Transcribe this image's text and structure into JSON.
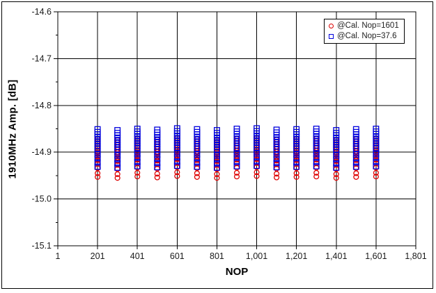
{
  "chart_data": {
    "type": "scatter",
    "xlabel": "NOP",
    "ylabel": "1910MHz Amp. [dB]",
    "xlim": [
      1,
      1801
    ],
    "ylim": [
      -15.1,
      -14.6
    ],
    "grid": "on",
    "grid_color": "#000000",
    "background": "#FFFFFF",
    "legend_position": "top-right-inside",
    "x_tick_values": [
      1,
      201,
      401,
      601,
      801,
      1001,
      1201,
      1401,
      1601,
      1801
    ],
    "x_tick_labels": [
      "1",
      "201",
      "401",
      "601",
      "801",
      "1,001",
      "1,201",
      "1,401",
      "1,601",
      "1,801"
    ],
    "y_tick_values": [
      -14.6,
      -14.7,
      -14.8,
      -14.9,
      -15.0,
      -15.1
    ],
    "y_tick_labels": [
      "-14.6",
      "-14.7",
      "-14.8",
      "-14.9",
      "-15.0",
      "-15.1"
    ],
    "y_minor_ticks": [
      -14.65,
      -14.75,
      -14.85,
      -14.95,
      -15.05
    ],
    "series": [
      {
        "name": "@Cal. Nop=1601",
        "marker": "circle",
        "color": "#DD0000",
        "points": [
          {
            "x": 201,
            "ys": [
              -14.872,
              -14.877,
              -14.882,
              -14.887,
              -14.892,
              -14.898,
              -14.904,
              -14.91,
              -14.917,
              -14.925,
              -14.934,
              -14.945,
              -14.953
            ]
          },
          {
            "x": 301,
            "ys": [
              -14.874,
              -14.879,
              -14.884,
              -14.889,
              -14.894,
              -14.9,
              -14.906,
              -14.912,
              -14.919,
              -14.927,
              -14.936,
              -14.947,
              -14.955
            ]
          },
          {
            "x": 401,
            "ys": [
              -14.871,
              -14.876,
              -14.881,
              -14.886,
              -14.891,
              -14.897,
              -14.903,
              -14.909,
              -14.916,
              -14.924,
              -14.933,
              -14.944,
              -14.952
            ]
          },
          {
            "x": 501,
            "ys": [
              -14.873,
              -14.878,
              -14.883,
              -14.888,
              -14.893,
              -14.899,
              -14.905,
              -14.911,
              -14.918,
              -14.926,
              -14.935,
              -14.946,
              -14.954
            ]
          },
          {
            "x": 601,
            "ys": [
              -14.87,
              -14.875,
              -14.88,
              -14.885,
              -14.89,
              -14.896,
              -14.902,
              -14.908,
              -14.915,
              -14.923,
              -14.932,
              -14.943,
              -14.951
            ]
          },
          {
            "x": 701,
            "ys": [
              -14.872,
              -14.877,
              -14.882,
              -14.887,
              -14.892,
              -14.898,
              -14.904,
              -14.91,
              -14.917,
              -14.925,
              -14.934,
              -14.945,
              -14.953
            ]
          },
          {
            "x": 801,
            "ys": [
              -14.874,
              -14.879,
              -14.884,
              -14.889,
              -14.894,
              -14.9,
              -14.906,
              -14.912,
              -14.919,
              -14.927,
              -14.936,
              -14.947,
              -14.955
            ]
          },
          {
            "x": 901,
            "ys": [
              -14.871,
              -14.876,
              -14.881,
              -14.886,
              -14.891,
              -14.897,
              -14.903,
              -14.909,
              -14.916,
              -14.924,
              -14.933,
              -14.944,
              -14.952
            ]
          },
          {
            "x": 1001,
            "ys": [
              -14.87,
              -14.875,
              -14.88,
              -14.885,
              -14.89,
              -14.896,
              -14.902,
              -14.908,
              -14.915,
              -14.923,
              -14.932,
              -14.943,
              -14.951
            ]
          },
          {
            "x": 1101,
            "ys": [
              -14.873,
              -14.878,
              -14.883,
              -14.888,
              -14.893,
              -14.899,
              -14.905,
              -14.911,
              -14.918,
              -14.926,
              -14.935,
              -14.946,
              -14.954
            ]
          },
          {
            "x": 1201,
            "ys": [
              -14.872,
              -14.877,
              -14.882,
              -14.887,
              -14.892,
              -14.898,
              -14.904,
              -14.91,
              -14.917,
              -14.925,
              -14.934,
              -14.945,
              -14.953
            ]
          },
          {
            "x": 1301,
            "ys": [
              -14.871,
              -14.876,
              -14.881,
              -14.886,
              -14.891,
              -14.897,
              -14.903,
              -14.909,
              -14.916,
              -14.924,
              -14.933,
              -14.944,
              -14.952
            ]
          },
          {
            "x": 1401,
            "ys": [
              -14.874,
              -14.879,
              -14.884,
              -14.889,
              -14.894,
              -14.9,
              -14.906,
              -14.912,
              -14.919,
              -14.927,
              -14.936,
              -14.947,
              -14.955
            ]
          },
          {
            "x": 1501,
            "ys": [
              -14.872,
              -14.877,
              -14.882,
              -14.887,
              -14.892,
              -14.898,
              -14.904,
              -14.91,
              -14.917,
              -14.925,
              -14.934,
              -14.945,
              -14.953
            ]
          },
          {
            "x": 1601,
            "ys": [
              -14.871,
              -14.876,
              -14.881,
              -14.886,
              -14.891,
              -14.897,
              -14.903,
              -14.909,
              -14.916,
              -14.924,
              -14.933,
              -14.944,
              -14.952
            ]
          }
        ]
      },
      {
        "name": "@Cal. Nop=37.6",
        "marker": "square",
        "color": "#0000DD",
        "points": [
          {
            "x": 201,
            "ys": [
              -14.851,
              -14.857,
              -14.862,
              -14.867,
              -14.872,
              -14.877,
              -14.882,
              -14.887,
              -14.892,
              -14.898,
              -14.905,
              -14.913,
              -14.922,
              -14.931
            ]
          },
          {
            "x": 301,
            "ys": [
              -14.853,
              -14.859,
              -14.864,
              -14.869,
              -14.874,
              -14.879,
              -14.884,
              -14.889,
              -14.894,
              -14.9,
              -14.907,
              -14.915,
              -14.924,
              -14.933
            ]
          },
          {
            "x": 401,
            "ys": [
              -14.85,
              -14.856,
              -14.861,
              -14.866,
              -14.871,
              -14.876,
              -14.881,
              -14.886,
              -14.891,
              -14.897,
              -14.904,
              -14.912,
              -14.921,
              -14.93
            ]
          },
          {
            "x": 501,
            "ys": [
              -14.852,
              -14.858,
              -14.863,
              -14.868,
              -14.873,
              -14.878,
              -14.883,
              -14.888,
              -14.893,
              -14.899,
              -14.906,
              -14.914,
              -14.923,
              -14.932
            ]
          },
          {
            "x": 601,
            "ys": [
              -14.849,
              -14.855,
              -14.86,
              -14.865,
              -14.87,
              -14.875,
              -14.88,
              -14.885,
              -14.89,
              -14.896,
              -14.903,
              -14.911,
              -14.92,
              -14.929
            ]
          },
          {
            "x": 701,
            "ys": [
              -14.851,
              -14.857,
              -14.862,
              -14.867,
              -14.872,
              -14.877,
              -14.882,
              -14.887,
              -14.892,
              -14.898,
              -14.905,
              -14.913,
              -14.922,
              -14.931
            ]
          },
          {
            "x": 801,
            "ys": [
              -14.853,
              -14.859,
              -14.864,
              -14.869,
              -14.874,
              -14.879,
              -14.884,
              -14.889,
              -14.894,
              -14.9,
              -14.907,
              -14.915,
              -14.924,
              -14.933
            ]
          },
          {
            "x": 901,
            "ys": [
              -14.85,
              -14.856,
              -14.861,
              -14.866,
              -14.871,
              -14.876,
              -14.881,
              -14.886,
              -14.891,
              -14.897,
              -14.904,
              -14.912,
              -14.921,
              -14.93
            ]
          },
          {
            "x": 1001,
            "ys": [
              -14.849,
              -14.855,
              -14.86,
              -14.865,
              -14.87,
              -14.875,
              -14.88,
              -14.885,
              -14.89,
              -14.896,
              -14.903,
              -14.911,
              -14.92,
              -14.929
            ]
          },
          {
            "x": 1101,
            "ys": [
              -14.852,
              -14.858,
              -14.863,
              -14.868,
              -14.873,
              -14.878,
              -14.883,
              -14.888,
              -14.893,
              -14.899,
              -14.906,
              -14.914,
              -14.923,
              -14.932
            ]
          },
          {
            "x": 1201,
            "ys": [
              -14.851,
              -14.857,
              -14.862,
              -14.867,
              -14.872,
              -14.877,
              -14.882,
              -14.887,
              -14.892,
              -14.898,
              -14.905,
              -14.913,
              -14.922,
              -14.931
            ]
          },
          {
            "x": 1301,
            "ys": [
              -14.85,
              -14.856,
              -14.861,
              -14.866,
              -14.871,
              -14.876,
              -14.881,
              -14.886,
              -14.891,
              -14.897,
              -14.904,
              -14.912,
              -14.921,
              -14.93
            ]
          },
          {
            "x": 1401,
            "ys": [
              -14.853,
              -14.859,
              -14.864,
              -14.869,
              -14.874,
              -14.879,
              -14.884,
              -14.889,
              -14.894,
              -14.9,
              -14.907,
              -14.915,
              -14.924,
              -14.933
            ]
          },
          {
            "x": 1501,
            "ys": [
              -14.851,
              -14.857,
              -14.862,
              -14.867,
              -14.872,
              -14.877,
              -14.882,
              -14.887,
              -14.892,
              -14.898,
              -14.905,
              -14.913,
              -14.922,
              -14.931
            ]
          },
          {
            "x": 1601,
            "ys": [
              -14.85,
              -14.856,
              -14.861,
              -14.866,
              -14.871,
              -14.876,
              -14.881,
              -14.886,
              -14.891,
              -14.897,
              -14.904,
              -14.912,
              -14.921,
              -14.93
            ]
          }
        ]
      }
    ]
  }
}
